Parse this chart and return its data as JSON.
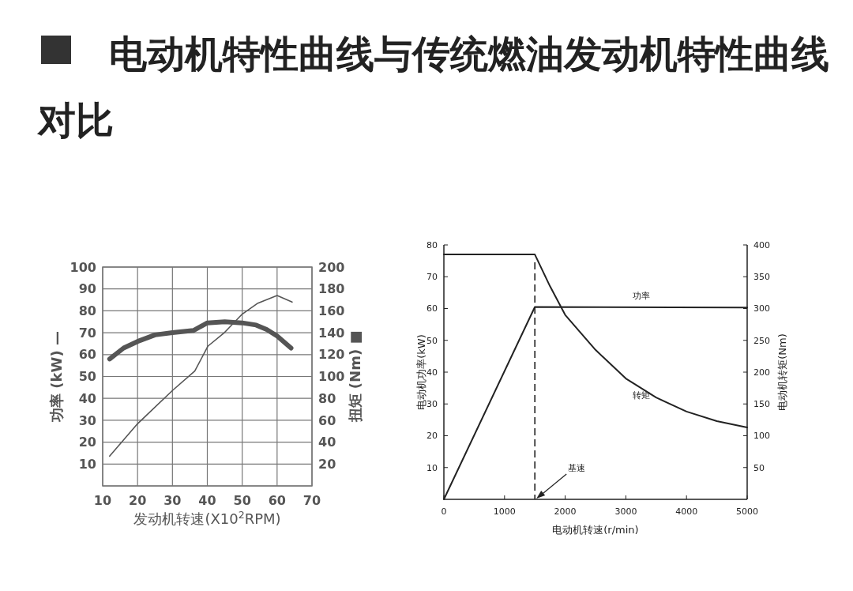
{
  "chart_data": [
    {
      "type": "line",
      "title": "电动机特性曲线与传统燃油发动机特性曲线对比",
      "xlabel": "发动机转速(X10$^{2}$RPM)",
      "ylabel": "功率 (kW) —",
      "y2label": "扭矩 (Nm) ■",
      "xlim": [
        10,
        70
      ],
      "xticks": [
        10,
        20,
        30,
        40,
        50,
        60,
        70
      ],
      "ylim": [
        0,
        100
      ],
      "yticks": [
        {
          "value": 0,
          "label": null
        },
        10,
        20,
        30,
        40,
        50,
        60,
        70,
        80,
        90,
        100
      ],
      "y2lim": [
        0,
        200
      ],
      "y2ticks": [
        20,
        40,
        60,
        80,
        100,
        120,
        140,
        160,
        180,
        200
      ],
      "grid": true,
      "series": [
        {
          "color": "#555555",
          "x": [
            12,
            20,
            30,
            36.4,
            40.2,
            45,
            50,
            54.5,
            60,
            64.3
          ],
          "values": [
            13.6,
            28.4,
            43.6,
            52.5,
            63.9,
            70.2,
            78.5,
            83.5,
            87,
            84
          ]
        },
        {
          "color": "#555555",
          "axis": "y2",
          "x": [
            12,
            16,
            20,
            25,
            30,
            36,
            40,
            45,
            50,
            54,
            57,
            60,
            64
          ],
          "values": [
            116,
            126,
            132,
            138,
            140,
            142,
            149,
            150,
            149,
            147,
            143,
            137,
            126
          ]
        }
      ]
    },
    {
      "type": "line",
      "xlabel": "电动机转速(r/min)",
      "ylabel": "电动机功率(kW)",
      "y2label": "电动机转矩(Nm)",
      "xlim": [
        0,
        5000
      ],
      "xticks": [
        0,
        1000,
        2000,
        3000,
        4000,
        5000
      ],
      "ylim": [
        0,
        80
      ],
      "yticks": [
        10,
        20,
        30,
        40,
        50,
        60,
        70,
        80
      ],
      "y2lim": [
        0,
        400
      ],
      "y2ticks": [
        50,
        100,
        150,
        200,
        250,
        300,
        350,
        400
      ],
      "ref_lines": [
        {
          "axis": "x",
          "value": 1500,
          "label": "基速",
          "line_style": "dashed"
        }
      ],
      "series": [
        {
          "name": "功率",
          "color": "#222222",
          "x": [
            0,
            1500,
            5000
          ],
          "values": [
            0,
            60.5,
            60.3
          ]
        },
        {
          "name": "转矩",
          "color": "#222222",
          "axis": "y2",
          "x": [
            0,
            1500,
            1750,
            2000,
            2500,
            3000,
            3500,
            4000,
            4500,
            5000
          ],
          "values": [
            385,
            385,
            335,
            290,
            235,
            190,
            160,
            138,
            123,
            113
          ]
        }
      ]
    }
  ]
}
